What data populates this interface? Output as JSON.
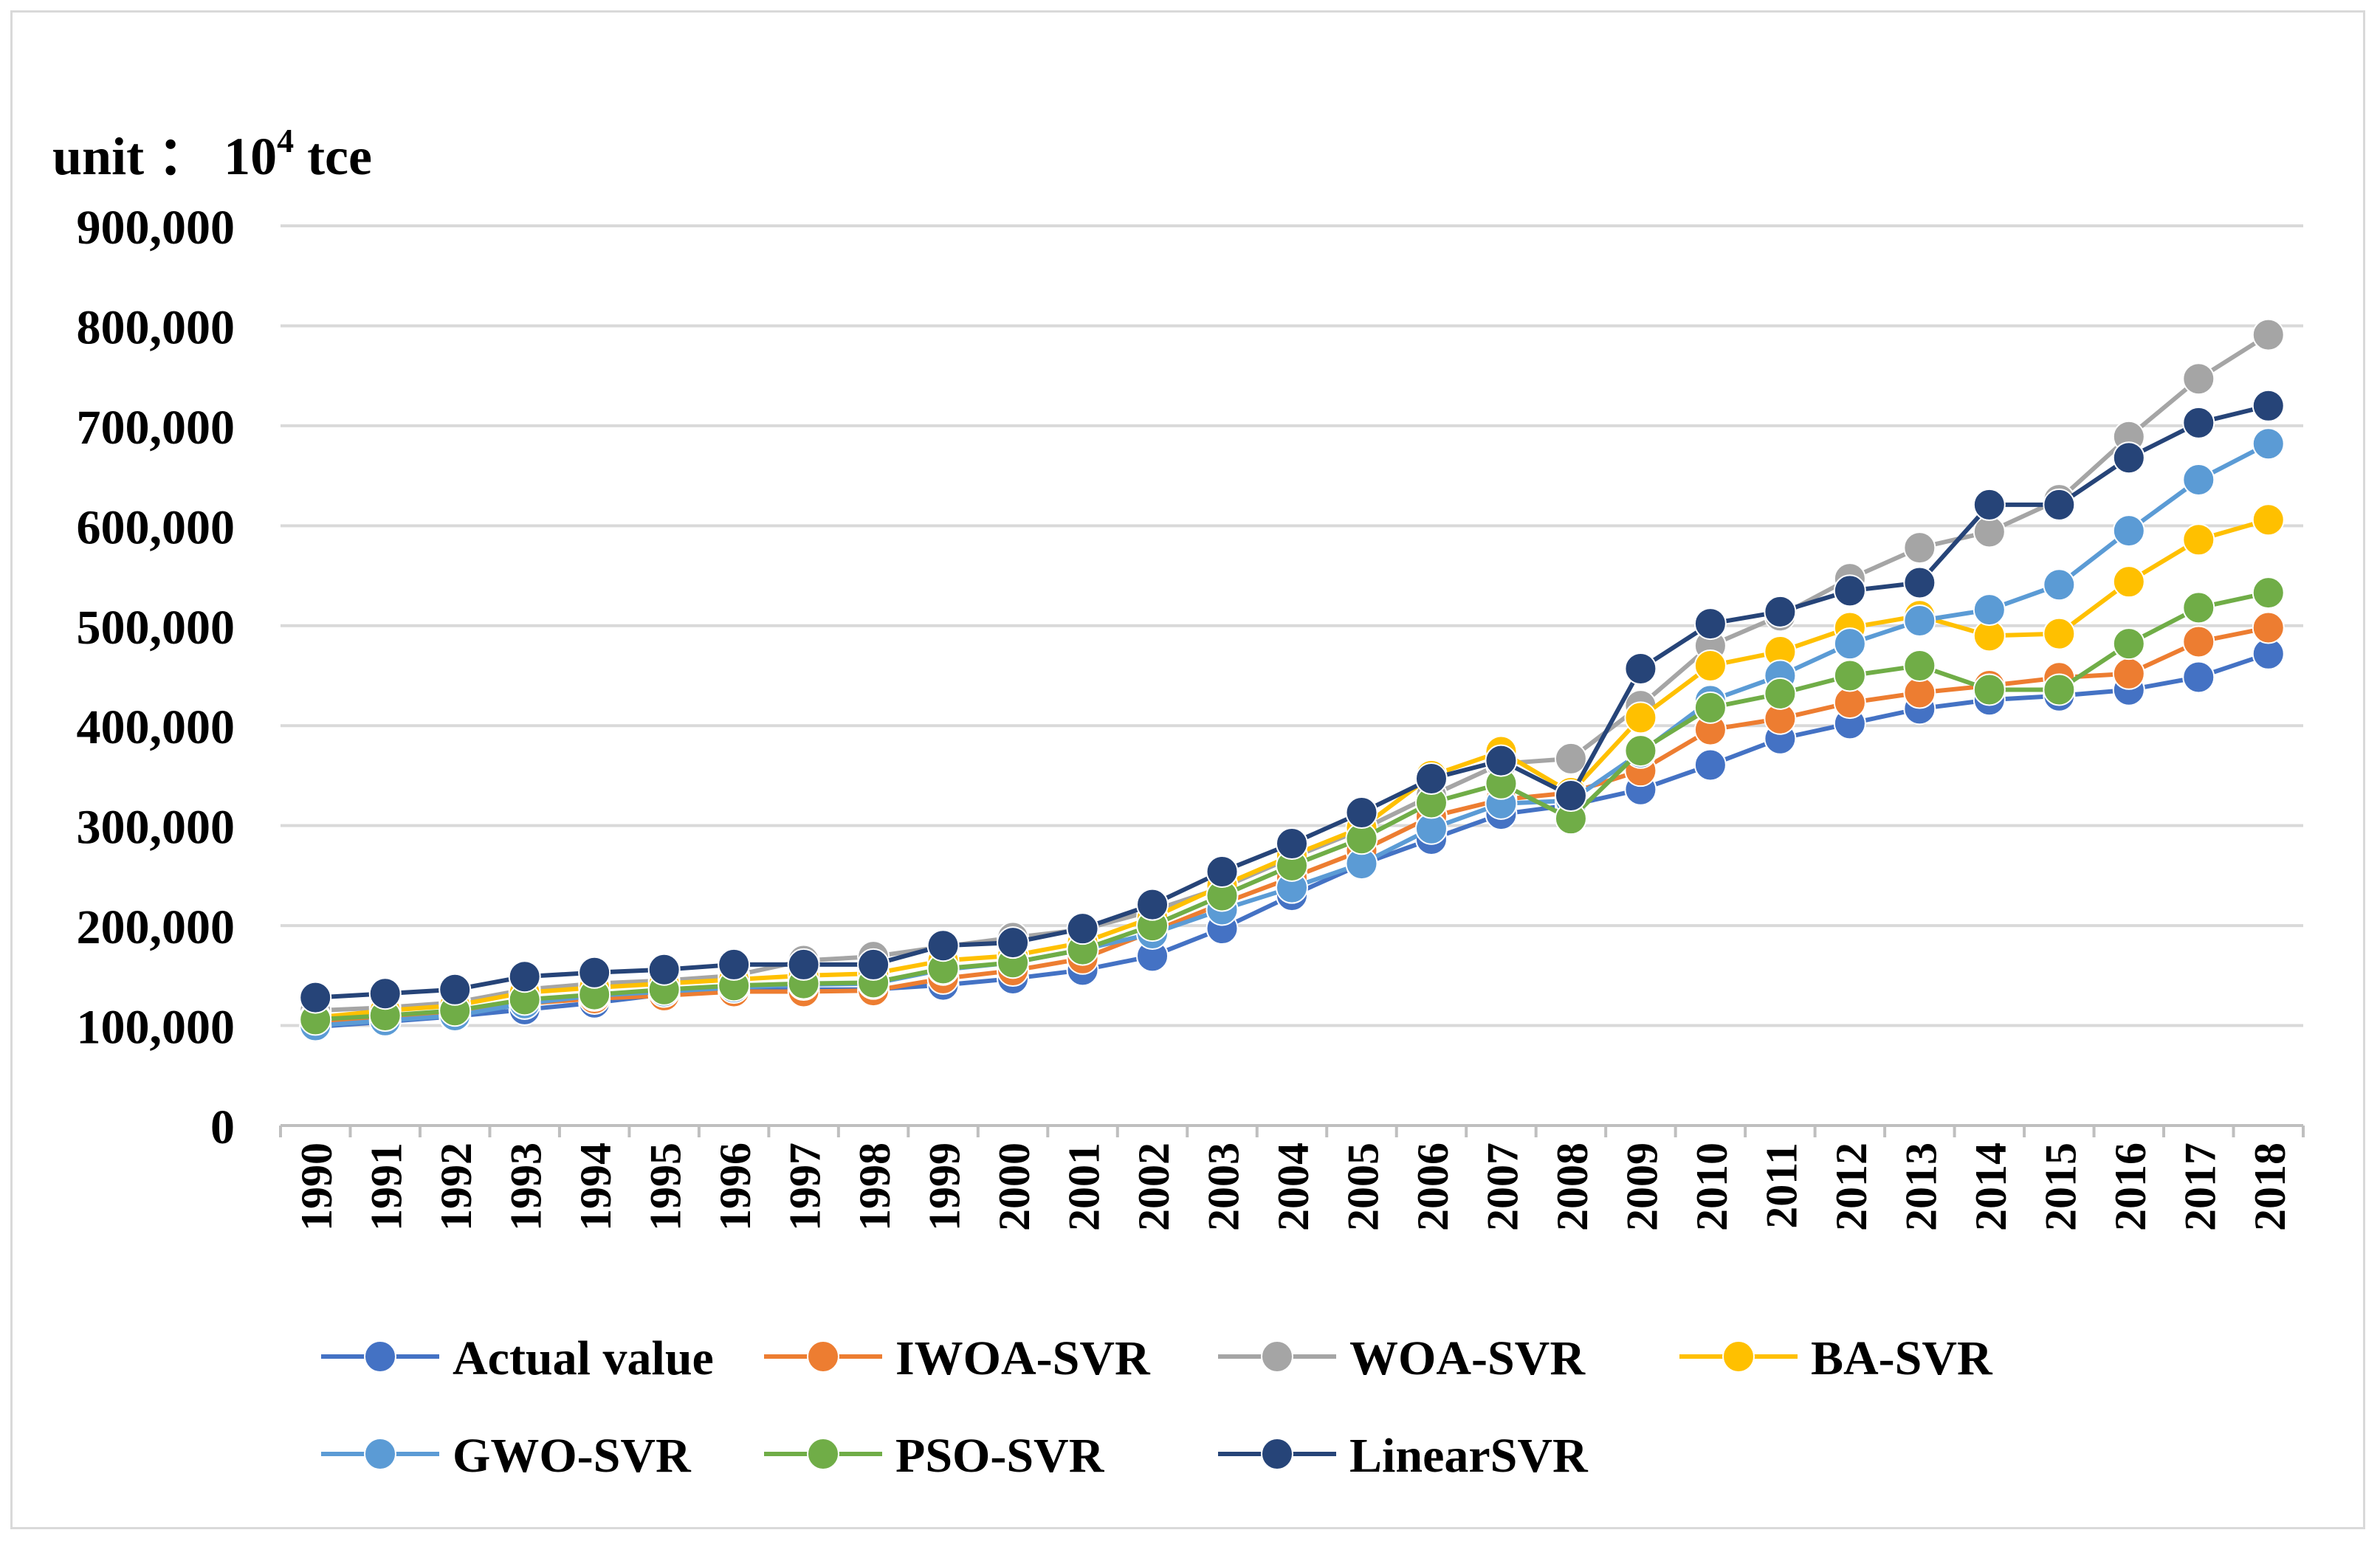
{
  "unit_label": {
    "prefix": "unit ： 10",
    "exponent": "4",
    "suffix": " tce"
  },
  "colors": {
    "Actual value": "#4472c4",
    "IWOA-SVR": "#ed7d31",
    "WOA-SVR": "#a5a5a5",
    "BA-SVR": "#ffc000",
    "GWO-SVR": "#5b9bd5",
    "PSO-SVR": "#70ad47",
    "LinearSVR": "#264478",
    "gridline": "#d9d9d9",
    "axis": "#bfbfbf"
  },
  "chart_data": {
    "type": "line",
    "title": "",
    "xlabel": "",
    "ylabel": "unit： 10^4 tce",
    "ylim": [
      0,
      900000
    ],
    "yticks": [
      0,
      100000,
      200000,
      300000,
      400000,
      500000,
      600000,
      700000,
      800000,
      900000
    ],
    "ytick_labels": [
      "0",
      "100,000",
      "200,000",
      "300,000",
      "400,000",
      "500,000",
      "600,000",
      "700,000",
      "800,000",
      "900,000"
    ],
    "grid": true,
    "legend_position": "bottom",
    "categories": [
      "1990",
      "1991",
      "1992",
      "1993",
      "1994",
      "1995",
      "1996",
      "1997",
      "1998",
      "1999",
      "2000",
      "2001",
      "2002",
      "2003",
      "2004",
      "2005",
      "2006",
      "2007",
      "2008",
      "2009",
      "2010",
      "2011",
      "2012",
      "2013",
      "2014",
      "2015",
      "2016",
      "2017",
      "2018"
    ],
    "series": [
      {
        "name": "Actual value",
        "values": [
          98703,
          103783,
          109170,
          115993,
          122737,
          131176,
          135192,
          135909,
          136184,
          140569,
          146964,
          155547,
          169577,
          197083,
          230281,
          261369,
          286467,
          311442,
          320611,
          336126,
          360648,
          387043,
          402138,
          416913,
          425806,
          429905,
          435819,
          448529,
          471925
        ]
      },
      {
        "name": "IWOA-SVR",
        "values": [
          103000,
          108000,
          113000,
          122000,
          127000,
          130000,
          134000,
          134000,
          135000,
          147000,
          155000,
          167000,
          194000,
          222000,
          248000,
          275000,
          309000,
          326000,
          333000,
          355000,
          396000,
          407000,
          423000,
          433000,
          440000,
          448000,
          452000,
          484000,
          498000
        ]
      },
      {
        "name": "WOA-SVR",
        "values": [
          115000,
          118000,
          123000,
          136000,
          142000,
          145000,
          150000,
          165000,
          169000,
          179000,
          188000,
          196000,
          215000,
          238000,
          268000,
          296000,
          330000,
          362000,
          367000,
          420000,
          480000,
          510000,
          547000,
          578000,
          594000,
          626000,
          689000,
          747000,
          791000
        ]
      },
      {
        "name": "BA-SVR",
        "values": [
          108000,
          115000,
          120000,
          133000,
          138000,
          142000,
          146000,
          150000,
          152000,
          165000,
          170000,
          183000,
          208000,
          240000,
          270000,
          298000,
          350000,
          374000,
          333000,
          408000,
          460000,
          474000,
          498000,
          510000,
          490000,
          492000,
          544000,
          586000,
          606000
        ]
      },
      {
        "name": "GWO-SVR",
        "values": [
          100000,
          105000,
          110000,
          122000,
          130000,
          134000,
          138000,
          141000,
          142000,
          156000,
          163000,
          176000,
          192000,
          216000,
          238000,
          262000,
          297000,
          322000,
          325000,
          373000,
          425000,
          450000,
          482000,
          505000,
          516000,
          541000,
          595000,
          646000,
          682000
        ]
      },
      {
        "name": "PSO-SVR",
        "values": [
          106000,
          110000,
          115000,
          126000,
          131000,
          136000,
          140000,
          142000,
          143000,
          157000,
          163000,
          176000,
          200000,
          230000,
          260000,
          287000,
          323000,
          342000,
          307000,
          375000,
          418000,
          432000,
          450000,
          460000,
          436000,
          436000,
          482000,
          518000,
          533000
        ]
      },
      {
        "name": "LinearSVR",
        "values": [
          128000,
          132000,
          136000,
          149000,
          153000,
          156000,
          161000,
          161000,
          161000,
          180000,
          183000,
          197000,
          221000,
          254000,
          282000,
          313000,
          347000,
          365000,
          330000,
          457000,
          502000,
          514000,
          535000,
          543000,
          621000,
          621000,
          668000,
          703000,
          720000
        ]
      }
    ]
  }
}
